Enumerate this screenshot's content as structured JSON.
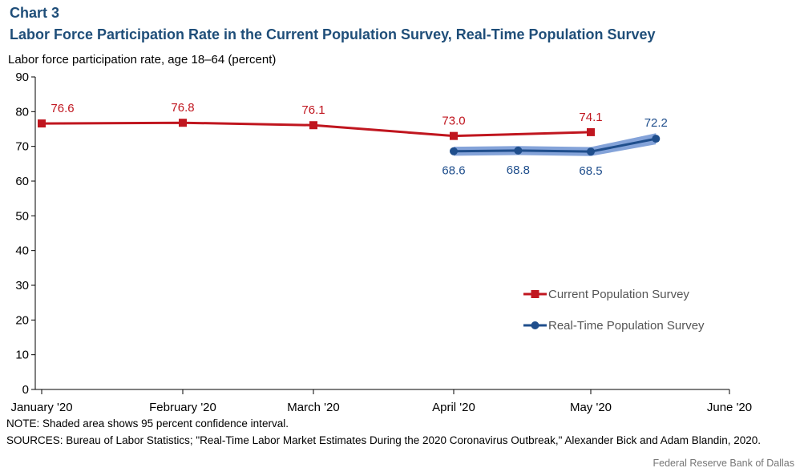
{
  "header": {
    "kicker": "Chart 3",
    "title": "Labor Force Participation Rate in the Current Population Survey, Real-Time Population Survey"
  },
  "footer": {
    "note": "NOTE: Shaded area shows 95 percent confidence interval.",
    "sources": "SOURCES: Bureau of Labor Statistics; \"Real-Time Labor Market Estimates During the 2020 Coronavirus Outbreak,\" Alexander Bick and Adam Blandin, 2020.",
    "credit": "Federal Reserve Bank of Dallas"
  },
  "chart_data": {
    "type": "line",
    "title": "Labor Force Participation Rate in the Current Population Survey, Real-Time Population Survey",
    "ylabel": "Labor force participation rate, age 18–64 (percent)",
    "xlabel": "",
    "ylim": [
      0,
      90
    ],
    "yticks": [
      0,
      10,
      20,
      30,
      40,
      50,
      60,
      70,
      80,
      90
    ],
    "x_ticks": [
      "January '20",
      "February '20",
      "March '20",
      "April '20",
      "May '20",
      "June '20"
    ],
    "xlim": [
      0,
      5
    ],
    "grid": false,
    "legend_position": "lower-right",
    "colors": {
      "cps": "#C0161F",
      "rps": "#1F4E8C",
      "band": "#6F93D2",
      "axis": "#000000"
    },
    "series": [
      {
        "name": "Current Population Survey",
        "color": "#C0161F",
        "marker": "square",
        "points": [
          {
            "x": 0,
            "y": 76.6,
            "label": "76.6"
          },
          {
            "x": 1,
            "y": 76.8,
            "label": "76.8"
          },
          {
            "x": 2,
            "y": 76.1,
            "label": "76.1"
          },
          {
            "x": 3,
            "y": 73.0,
            "label": "73.0"
          },
          {
            "x": 4,
            "y": 74.1,
            "label": "74.1"
          }
        ]
      },
      {
        "name": "Real-Time Population Survey",
        "color": "#1F4E8C",
        "marker": "circle",
        "points": [
          {
            "x": 3.0,
            "y": 68.6,
            "label": "68.6"
          },
          {
            "x": 3.47,
            "y": 68.8,
            "label": "68.8"
          },
          {
            "x": 4.0,
            "y": 68.5,
            "label": "68.5"
          },
          {
            "x": 4.47,
            "y": 72.2,
            "label": "72.2"
          }
        ],
        "confidence_band": {
          "lower": [
            67.3,
            67.5,
            67.2,
            70.6
          ],
          "upper": [
            69.9,
            70.1,
            69.8,
            73.8
          ]
        }
      }
    ]
  }
}
